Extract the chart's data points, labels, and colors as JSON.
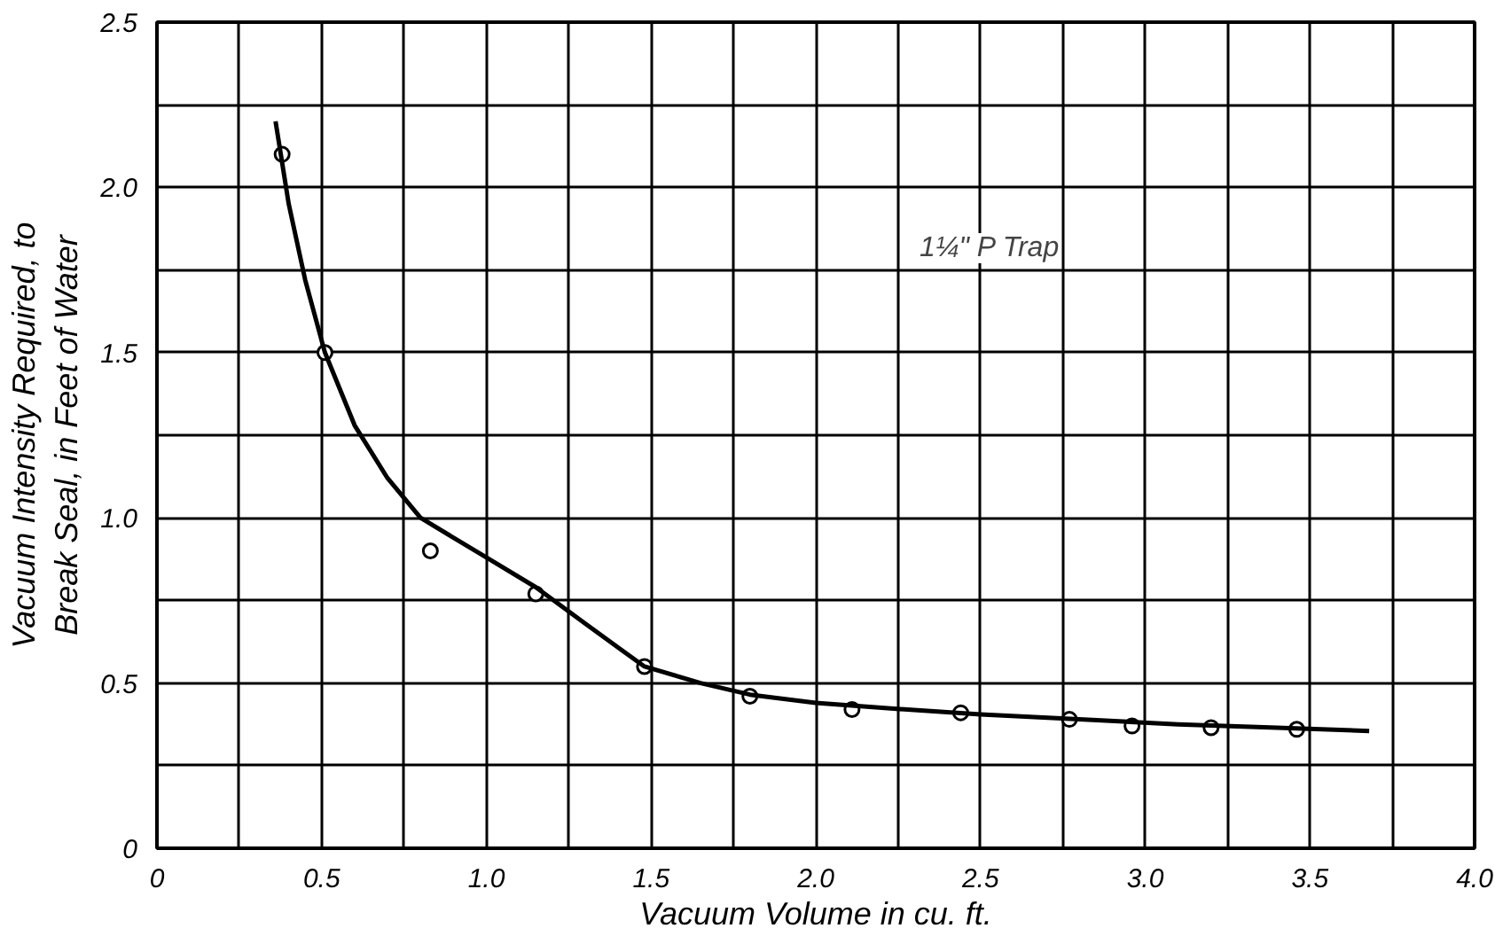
{
  "chart_data": {
    "type": "scatter",
    "xlabel": "Vacuum Volume in cu. ft.",
    "ylabel": "Vacuum Intensity Required, to\nBreak Seal, in Feet of Water",
    "annotations": [
      "1¼\" P Trap"
    ],
    "xlim": [
      0,
      4
    ],
    "ylim": [
      0,
      2.5
    ],
    "xticks": [
      0,
      {
        "value": 0.25,
        "label": null
      },
      0.5,
      {
        "value": 0.75,
        "label": null
      },
      {
        "value": 1,
        "label": "1.0"
      },
      {
        "value": 1.25,
        "label": null
      },
      1.5,
      {
        "value": 1.75,
        "label": null
      },
      {
        "value": 2,
        "label": "2.0"
      },
      {
        "value": 2.25,
        "label": null
      },
      2.5,
      {
        "value": 2.75,
        "label": null
      },
      {
        "value": 3,
        "label": "3.0"
      },
      {
        "value": 3.25,
        "label": null
      },
      3.5,
      {
        "value": 3.75,
        "label": null
      },
      {
        "value": 4,
        "label": "4.0"
      }
    ],
    "yticks": [
      0,
      {
        "value": 0.25,
        "label": null
      },
      0.5,
      {
        "value": 0.75,
        "label": null
      },
      {
        "value": 1,
        "label": "1.0"
      },
      {
        "value": 1.25,
        "label": null
      },
      1.5,
      {
        "value": 1.75,
        "label": null
      },
      {
        "value": 2,
        "label": "2.0"
      },
      {
        "value": 2.25,
        "label": null
      },
      2.5
    ],
    "grid": true,
    "marker": "circle",
    "series": [
      {
        "color": "#000000",
        "x": [
          0.38,
          0.51,
          0.83,
          1.15,
          1.48,
          1.8,
          2.11,
          2.44,
          2.77,
          2.96,
          3.2,
          3.46
        ],
        "values": [
          2.1,
          1.5,
          0.9,
          0.77,
          0.55,
          0.46,
          0.42,
          0.41,
          0.39,
          0.37,
          0.365,
          0.36
        ]
      },
      {
        "type": "line",
        "color": "#000000",
        "line_style": "solid",
        "marker": "none",
        "x": [
          0.36,
          0.4,
          0.45,
          0.51,
          0.6,
          0.7,
          0.8,
          0.9,
          1.0,
          1.15,
          1.3,
          1.41,
          1.48,
          1.65,
          1.8,
          2.0,
          2.2,
          2.5,
          2.8,
          3.1,
          3.4,
          3.68
        ],
        "values": [
          2.2,
          1.95,
          1.72,
          1.5,
          1.28,
          1.12,
          1.0,
          0.94,
          0.88,
          0.79,
          0.68,
          0.6,
          0.55,
          0.5,
          0.465,
          0.44,
          0.425,
          0.405,
          0.39,
          0.375,
          0.365,
          0.355
        ]
      }
    ]
  }
}
